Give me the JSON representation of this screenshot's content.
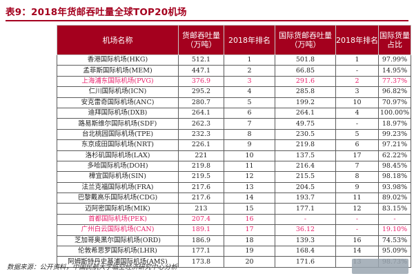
{
  "title": "表9：2018年货邮吞吐量全球TOP20机场",
  "headers": {
    "name": "机场名称",
    "volume": [
      "货邮吞吐量",
      "（万吨）"
    ],
    "rank": "2018年排名",
    "intl_volume": [
      "国际货邮吞吐量",
      "（万吨）"
    ],
    "intl_rank": "2018年排名",
    "share": [
      "国际货量",
      "占比"
    ]
  },
  "rows": [
    {
      "name": "香港国际机场(HKG)",
      "volume": "512.1",
      "rank": "1",
      "intl_volume": "501.8",
      "intl_rank": "1",
      "share": "97.99%",
      "highlight": false
    },
    {
      "name": "孟菲斯国际机场(MEM)",
      "volume": "447.1",
      "rank": "2",
      "intl_volume": "66.85",
      "intl_rank": "-",
      "share": "14.95%",
      "highlight": false
    },
    {
      "name": "上海浦东国际机场(PVG)",
      "volume": "376.9",
      "rank": "3",
      "intl_volume": "291.6",
      "intl_rank": "2",
      "share": "77.37%",
      "highlight": true
    },
    {
      "name": "仁川国际机场(ICN)",
      "volume": "295.2",
      "rank": "4",
      "intl_volume": "285.8",
      "intl_rank": "3",
      "share": "96.82%",
      "highlight": false
    },
    {
      "name": "安克雷奇国际机场(ANC)",
      "volume": "280.7",
      "rank": "5",
      "intl_volume": "199.2",
      "intl_rank": "10",
      "share": "70.97%",
      "highlight": false
    },
    {
      "name": "迪拜国际机场(DXB)",
      "volume": "264.1",
      "rank": "6",
      "intl_volume": "264.1",
      "intl_rank": "4",
      "share": "100.00%",
      "highlight": false
    },
    {
      "name": "路易斯维尔国际机场(SDF)",
      "volume": "262.3",
      "rank": "7",
      "intl_volume": "49.75",
      "intl_rank": "-",
      "share": "18.97%",
      "highlight": false
    },
    {
      "name": "台北桃园国际机场(TPE)",
      "volume": "232.3",
      "rank": "8",
      "intl_volume": "230.5",
      "intl_rank": "5",
      "share": "99.23%",
      "highlight": false
    },
    {
      "name": "东京成田国际机场(NRT)",
      "volume": "226.1",
      "rank": "9",
      "intl_volume": "219.8",
      "intl_rank": "6",
      "share": "97.21%",
      "highlight": false
    },
    {
      "name": "洛杉矶国际机场(LAX)",
      "volume": "221",
      "rank": "10",
      "intl_volume": "137.5",
      "intl_rank": "17",
      "share": "62.22%",
      "highlight": false
    },
    {
      "name": "多哈国际机场(DOH)",
      "volume": "219.8",
      "rank": "11",
      "intl_volume": "216.4",
      "intl_rank": "7",
      "share": "98.45%",
      "highlight": false
    },
    {
      "name": "樟宜国际机场(SIN)",
      "volume": "219.5",
      "rank": "12",
      "intl_volume": "215.5",
      "intl_rank": "8",
      "share": "98.18%",
      "highlight": false
    },
    {
      "name": "法兰克福国际机场(FRA)",
      "volume": "217.6",
      "rank": "13",
      "intl_volume": "204.5",
      "intl_rank": "9",
      "share": "93.98%",
      "highlight": false
    },
    {
      "name": "巴黎戴高乐国际机场(CDG)",
      "volume": "217.6",
      "rank": "14",
      "intl_volume": "193.7",
      "intl_rank": "11",
      "share": "89.02%",
      "highlight": false
    },
    {
      "name": "迈阿密国际机场(MIK)",
      "volume": "213",
      "rank": "15",
      "intl_volume": "177.1",
      "intl_rank": "12",
      "share": "83.15%",
      "highlight": false
    },
    {
      "name": "首都国际机场(PEK)",
      "volume": "207.4",
      "rank": "16",
      "intl_volume": "-",
      "intl_rank": "-",
      "share": "-",
      "highlight": true
    },
    {
      "name": "广州白云国际机场(CAN)",
      "volume": "189.1",
      "rank": "17",
      "intl_volume": "36.12",
      "intl_rank": "-",
      "share": "19.10%",
      "highlight": true
    },
    {
      "name": "芝加哥奥黑尔国际机场(ORD)",
      "volume": "186.9",
      "rank": "18",
      "intl_volume": "139.3",
      "intl_rank": "16",
      "share": "74.53%",
      "highlight": false
    },
    {
      "name": "伦敦希思罗国际机场(LHR)",
      "volume": "177.1",
      "rank": "19",
      "intl_volume": "168.4",
      "intl_rank": "14",
      "share": "95.09%",
      "highlight": false
    },
    {
      "name": "阿姆斯特丹史基浦国际机场(AMS)",
      "volume": "173.8",
      "rank": "20",
      "intl_volume": "171.6",
      "intl_rank": "13",
      "share": "98.73%",
      "highlight": false
    }
  ],
  "source": "数据来源：公开资料，中国民航大学临空经济研究中心分析",
  "colors": {
    "header_bg": "#a4001e",
    "highlight_text": "#e8206b"
  }
}
